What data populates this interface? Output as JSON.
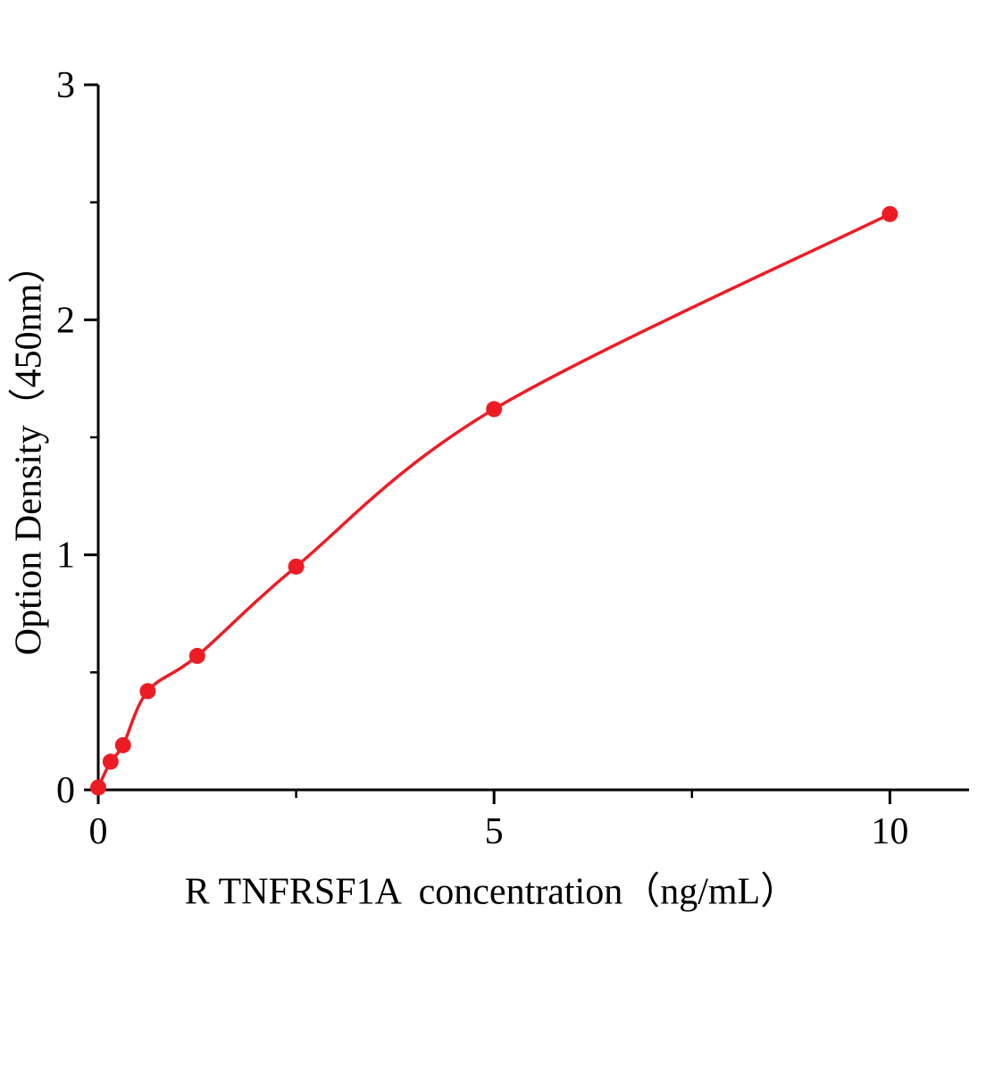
{
  "chart_data": {
    "type": "scatter",
    "title": "",
    "xlabel": "R TNFRSF1A  concentration（ng/mL）",
    "ylabel": "Option Density（450nm）",
    "x": [
      0,
      0.156,
      0.313,
      0.625,
      1.25,
      2.5,
      5,
      10
    ],
    "y": [
      0.01,
      0.12,
      0.19,
      0.42,
      0.57,
      0.95,
      1.62,
      2.45
    ],
    "curve": "smooth fitted curve through all points starting at origin",
    "xlim": [
      0,
      11
    ],
    "ylim": [
      0,
      3
    ],
    "x_major_ticks": [
      0,
      5,
      10
    ],
    "x_minor_ticks": [
      2.5,
      7.5
    ],
    "y_major_ticks": [
      0,
      1,
      2,
      3
    ],
    "y_minor_ticks": [
      0.5,
      1.5,
      2.5
    ],
    "legend": "none",
    "grid": "off",
    "point_color": "#ed1c24",
    "line_color": "#ed1c24",
    "axis_color": "#000000",
    "background": "#ffffff"
  }
}
